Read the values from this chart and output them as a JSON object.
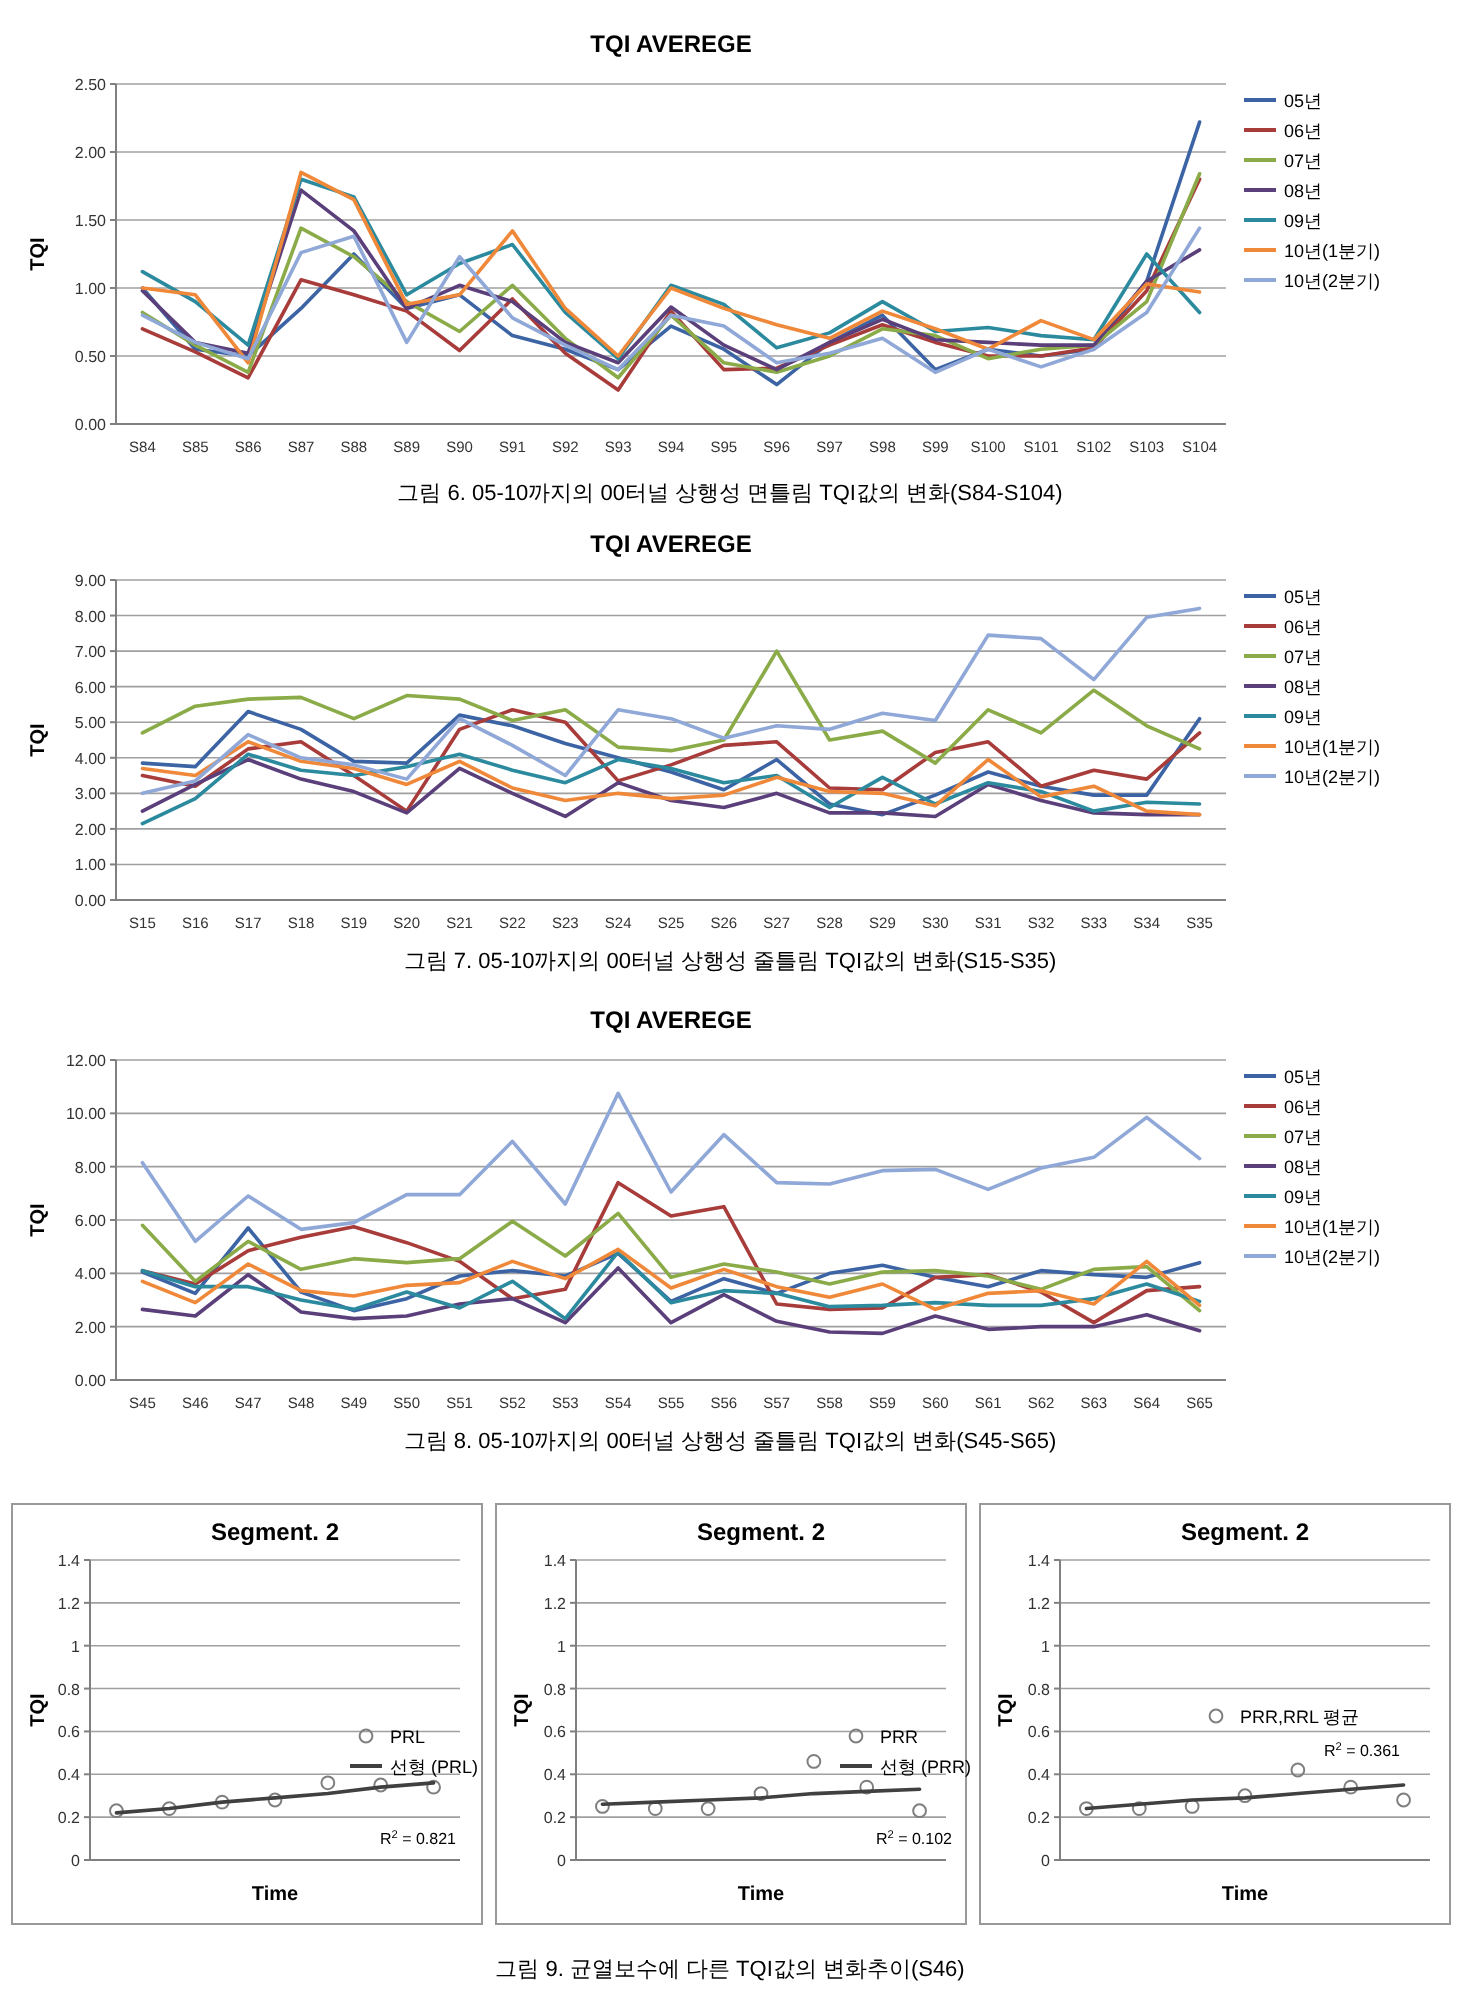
{
  "chart_data": [
    {
      "type": "line",
      "title": "TQI AVEREGE",
      "ylabel": "TQI",
      "grid": "y",
      "legend": "right",
      "categories": [
        "S84",
        "S85",
        "S86",
        "S87",
        "S88",
        "S89",
        "S90",
        "S91",
        "S92",
        "S93",
        "S94",
        "S95",
        "S96",
        "S97",
        "S98",
        "S99",
        "S100",
        "S101",
        "S102",
        "S103",
        "S104"
      ],
      "ylim": [
        0,
        2.5
      ],
      "yticks": [
        {
          "value": 0,
          "label": "0.00"
        },
        {
          "value": 0.5,
          "label": "0.50"
        },
        {
          "value": 1,
          "label": "1.00"
        },
        {
          "value": 1.5,
          "label": "1.50"
        },
        {
          "value": 2,
          "label": "2.00"
        },
        {
          "value": 2.5,
          "label": "2.50"
        }
      ],
      "series": [
        {
          "name": "05년",
          "color": "#3c64a4",
          "values": [
            1.0,
            0.55,
            0.5,
            0.85,
            1.25,
            0.85,
            0.95,
            0.65,
            0.55,
            0.4,
            0.72,
            0.55,
            0.29,
            0.6,
            0.8,
            0.4,
            0.55,
            0.5,
            0.55,
            1.05,
            2.22
          ]
        },
        {
          "name": "06년",
          "color": "#a83c3a",
          "values": [
            0.7,
            0.53,
            0.34,
            1.06,
            0.95,
            0.83,
            0.54,
            0.92,
            0.52,
            0.25,
            0.83,
            0.4,
            0.41,
            0.58,
            0.73,
            0.6,
            0.5,
            0.5,
            0.56,
            0.98,
            1.8
          ]
        },
        {
          "name": "07년",
          "color": "#8aab48",
          "values": [
            0.82,
            0.58,
            0.38,
            1.44,
            1.23,
            0.9,
            0.68,
            1.02,
            0.63,
            0.34,
            0.8,
            0.45,
            0.38,
            0.5,
            0.7,
            0.65,
            0.48,
            0.55,
            0.58,
            0.9,
            1.84
          ]
        },
        {
          "name": "08년",
          "color": "#5a3f7a",
          "values": [
            0.98,
            0.6,
            0.52,
            1.72,
            1.42,
            0.85,
            1.02,
            0.9,
            0.6,
            0.45,
            0.86,
            0.58,
            0.4,
            0.6,
            0.77,
            0.62,
            0.6,
            0.58,
            0.58,
            1.05,
            1.28
          ]
        },
        {
          "name": "09년",
          "color": "#2b8a9e",
          "values": [
            1.12,
            0.9,
            0.58,
            1.8,
            1.67,
            0.95,
            1.18,
            1.32,
            0.82,
            0.48,
            1.02,
            0.88,
            0.56,
            0.67,
            0.9,
            0.68,
            0.71,
            0.65,
            0.62,
            1.25,
            0.82
          ]
        },
        {
          "name": "10년(1분기)",
          "color": "#f0883a",
          "values": [
            1.0,
            0.95,
            0.45,
            1.85,
            1.65,
            0.88,
            0.95,
            1.42,
            0.85,
            0.5,
            1.0,
            0.85,
            0.73,
            0.63,
            0.83,
            0.7,
            0.55,
            0.76,
            0.62,
            1.03,
            0.97
          ]
        },
        {
          "name": "10년(2분기)",
          "color": "#8fa8d8",
          "values": [
            0.8,
            0.6,
            0.48,
            1.26,
            1.38,
            0.6,
            1.23,
            0.78,
            0.58,
            0.4,
            0.8,
            0.72,
            0.45,
            0.52,
            0.63,
            0.38,
            0.55,
            0.42,
            0.55,
            0.82,
            1.44
          ]
        }
      ],
      "annotations": [
        "그림 6. 05-10까지의 00터널 상행성 면틀림 TQI값의 변화(S84-S104)"
      ]
    },
    {
      "type": "line",
      "title": "TQI AVEREGE",
      "ylabel": "TQI",
      "grid": "y",
      "legend": "right",
      "categories": [
        "S15",
        "S16",
        "S17",
        "S18",
        "S19",
        "S20",
        "S21",
        "S22",
        "S23",
        "S24",
        "S25",
        "S26",
        "S27",
        "S28",
        "S29",
        "S30",
        "S31",
        "S32",
        "S33",
        "S34",
        "S35"
      ],
      "ylim": [
        0,
        9
      ],
      "yticks": [
        {
          "value": 0,
          "label": "0.00"
        },
        {
          "value": 1,
          "label": "1.00"
        },
        {
          "value": 2,
          "label": "2.00"
        },
        {
          "value": 3,
          "label": "3.00"
        },
        {
          "value": 4,
          "label": "4.00"
        },
        {
          "value": 5,
          "label": "5.00"
        },
        {
          "value": 6,
          "label": "6.00"
        },
        {
          "value": 7,
          "label": "7.00"
        },
        {
          "value": 8,
          "label": "8.00"
        },
        {
          "value": 9,
          "label": "9.00"
        }
      ],
      "series": [
        {
          "name": "05년",
          "color": "#3c64a4",
          "values": [
            3.85,
            3.75,
            5.3,
            4.8,
            3.9,
            3.85,
            5.2,
            4.9,
            4.4,
            4.0,
            3.6,
            3.1,
            3.95,
            2.7,
            2.4,
            2.95,
            3.6,
            3.2,
            2.95,
            2.95,
            5.1
          ]
        },
        {
          "name": "06년",
          "color": "#a83c3a",
          "values": [
            3.5,
            3.2,
            4.25,
            4.45,
            3.5,
            2.5,
            4.8,
            5.35,
            5.0,
            3.35,
            3.8,
            4.35,
            4.45,
            3.15,
            3.1,
            4.15,
            4.45,
            3.2,
            3.65,
            3.4,
            4.7
          ]
        },
        {
          "name": "07년",
          "color": "#8aab48",
          "values": [
            4.7,
            5.45,
            5.65,
            5.7,
            5.1,
            5.75,
            5.65,
            5.05,
            5.35,
            4.3,
            4.2,
            4.5,
            7.0,
            4.5,
            4.75,
            3.85,
            5.35,
            4.7,
            5.9,
            4.9,
            4.25
          ]
        },
        {
          "name": "08년",
          "color": "#5a3f7a",
          "values": [
            2.5,
            3.25,
            3.95,
            3.4,
            3.05,
            2.45,
            3.7,
            3.0,
            2.35,
            3.3,
            2.8,
            2.6,
            3.0,
            2.45,
            2.45,
            2.35,
            3.25,
            2.8,
            2.45,
            2.4,
            2.4
          ]
        },
        {
          "name": "09년",
          "color": "#2b8a9e",
          "values": [
            2.15,
            2.85,
            4.1,
            3.65,
            3.5,
            3.75,
            4.1,
            3.65,
            3.3,
            3.95,
            3.7,
            3.3,
            3.5,
            2.6,
            3.45,
            2.7,
            3.3,
            3.05,
            2.5,
            2.75,
            2.7
          ]
        },
        {
          "name": "10년(1분기)",
          "color": "#f0883a",
          "values": [
            3.7,
            3.5,
            4.45,
            3.9,
            3.7,
            3.25,
            3.9,
            3.15,
            2.8,
            3.0,
            2.85,
            2.95,
            3.45,
            3.05,
            3.0,
            2.65,
            3.95,
            2.9,
            3.2,
            2.5,
            2.4
          ]
        },
        {
          "name": "10년(2분기)",
          "color": "#8fa8d8",
          "values": [
            3.0,
            3.35,
            4.65,
            4.0,
            3.8,
            3.4,
            5.1,
            4.35,
            3.5,
            5.35,
            5.1,
            4.55,
            4.9,
            4.8,
            5.25,
            5.05,
            7.45,
            7.35,
            6.2,
            7.95,
            8.2
          ]
        }
      ],
      "annotations": [
        "그림 7. 05-10까지의 00터널 상행성 줄틀림 TQI값의 변화(S15-S35)"
      ]
    },
    {
      "type": "line",
      "title": "TQI AVEREGE",
      "ylabel": "TQI",
      "grid": "y",
      "legend": "right",
      "categories": [
        "S45",
        "S46",
        "S47",
        "S48",
        "S49",
        "S50",
        "S51",
        "S52",
        "S53",
        "S54",
        "S55",
        "S56",
        "S57",
        "S58",
        "S59",
        "S60",
        "S61",
        "S62",
        "S63",
        "S64",
        "S65"
      ],
      "ylim": [
        0,
        12
      ],
      "yticks": [
        {
          "value": 0,
          "label": "0.00"
        },
        {
          "value": 2,
          "label": "2.00"
        },
        {
          "value": 4,
          "label": "4.00"
        },
        {
          "value": 6,
          "label": "6.00"
        },
        {
          "value": 8,
          "label": "8.00"
        },
        {
          "value": 10,
          "label": "10.00"
        },
        {
          "value": 12,
          "label": "12.00"
        }
      ],
      "series": [
        {
          "name": "05년",
          "color": "#3c64a4",
          "values": [
            4.05,
            3.25,
            5.7,
            3.3,
            2.6,
            3.05,
            3.9,
            4.1,
            3.9,
            4.75,
            2.95,
            3.8,
            3.25,
            4.0,
            4.3,
            3.85,
            3.5,
            4.1,
            3.95,
            3.85,
            4.4
          ]
        },
        {
          "name": "06년",
          "color": "#a83c3a",
          "values": [
            4.1,
            3.6,
            4.85,
            5.35,
            5.75,
            5.15,
            4.45,
            3.05,
            3.4,
            7.4,
            6.15,
            6.5,
            2.85,
            2.65,
            2.7,
            3.85,
            3.95,
            3.3,
            2.15,
            3.35,
            3.5
          ]
        },
        {
          "name": "07년",
          "color": "#8aab48",
          "values": [
            5.8,
            3.7,
            5.2,
            4.15,
            4.55,
            4.4,
            4.55,
            5.95,
            4.65,
            6.25,
            3.85,
            4.35,
            4.05,
            3.6,
            4.05,
            4.1,
            3.9,
            3.4,
            4.15,
            4.25,
            2.6
          ]
        },
        {
          "name": "08년",
          "color": "#5a3f7a",
          "values": [
            2.65,
            2.4,
            3.95,
            2.55,
            2.3,
            2.4,
            2.85,
            3.05,
            2.15,
            4.2,
            2.15,
            3.2,
            2.2,
            1.8,
            1.75,
            2.4,
            1.9,
            2.0,
            2.0,
            2.45,
            1.85
          ]
        },
        {
          "name": "09년",
          "color": "#2b8a9e",
          "values": [
            4.1,
            3.5,
            3.5,
            3.0,
            2.65,
            3.3,
            2.7,
            3.7,
            2.3,
            4.8,
            2.9,
            3.35,
            3.25,
            2.75,
            2.8,
            2.9,
            2.8,
            2.8,
            3.05,
            3.6,
            2.95
          ]
        },
        {
          "name": "10년(1분기)",
          "color": "#f0883a",
          "values": [
            3.7,
            2.9,
            4.35,
            3.35,
            3.15,
            3.55,
            3.65,
            4.45,
            3.8,
            4.9,
            3.45,
            4.15,
            3.5,
            3.1,
            3.6,
            2.65,
            3.25,
            3.35,
            2.85,
            4.45,
            2.8
          ]
        },
        {
          "name": "10년(2분기)",
          "color": "#8fa8d8",
          "values": [
            8.15,
            5.2,
            6.9,
            5.65,
            5.9,
            6.95,
            6.95,
            8.95,
            6.6,
            10.75,
            7.05,
            9.2,
            7.4,
            7.35,
            7.85,
            7.9,
            7.15,
            7.95,
            8.35,
            9.85,
            8.3
          ]
        }
      ],
      "annotations": [
        "그림 8. 05-10까지의 00터널 상행성 줄틀림 TQI값의 변화(S45-S65)"
      ]
    },
    {
      "type": "scatter",
      "title": "Segment. 2",
      "xlabel": "Time",
      "ylabel": "TQI",
      "grid": "y",
      "legend": "right",
      "categories": [
        null,
        null,
        null,
        null,
        null,
        null,
        null
      ],
      "ylim": [
        0,
        1.4
      ],
      "yticks": [
        0,
        0.2,
        0.4,
        0.6,
        0.8,
        1,
        1.2,
        1.4
      ],
      "series": [
        {
          "name": "PRL",
          "color": "#7f7f7f",
          "marker": "circle",
          "values": [
            0.23,
            0.24,
            0.27,
            0.28,
            0.36,
            0.35,
            0.34
          ]
        },
        {
          "name": "선형 (PRL)",
          "type": "line",
          "marker": "none",
          "color": "#404040",
          "values": [
            0.22,
            0.24,
            0.27,
            0.29,
            0.31,
            0.34,
            0.36
          ]
        }
      ],
      "annotations": [
        "R$^{2}$ = 0.821"
      ]
    },
    {
      "type": "scatter",
      "title": "Segment. 2",
      "xlabel": "Time",
      "ylabel": "TQI",
      "grid": "y",
      "legend": "right",
      "categories": [
        null,
        null,
        null,
        null,
        null,
        null,
        null
      ],
      "ylim": [
        0,
        1.4
      ],
      "yticks": [
        0,
        0.2,
        0.4,
        0.6,
        0.8,
        1,
        1.2,
        1.4
      ],
      "series": [
        {
          "name": "PRR",
          "color": "#7f7f7f",
          "marker": "circle",
          "values": [
            0.25,
            0.24,
            0.24,
            0.31,
            0.46,
            0.34,
            0.23
          ]
        },
        {
          "name": "선형 (PRR)",
          "type": "line",
          "marker": "none",
          "color": "#404040",
          "values": [
            0.26,
            0.27,
            0.28,
            0.29,
            0.31,
            0.32,
            0.33
          ]
        }
      ],
      "annotations": [
        "R$^{2}$ = 0.102",
        "그림 9. 균열보수에 다른 TQI값의 변화추이(S46)"
      ]
    },
    {
      "type": "scatter",
      "title": "Segment. 2",
      "xlabel": "Time",
      "ylabel": "TQI",
      "grid": "y",
      "legend": "right",
      "categories": [
        null,
        null,
        null,
        null,
        null,
        null,
        null
      ],
      "ylim": [
        0,
        1.4
      ],
      "yticks": [
        0,
        0.2,
        0.4,
        0.6,
        0.8,
        1,
        1.2,
        1.4
      ],
      "series": [
        {
          "name": "PRR,RRL 평균",
          "color": "#7f7f7f",
          "marker": "circle",
          "values": [
            0.24,
            0.24,
            0.25,
            0.3,
            0.42,
            0.34,
            0.28
          ]
        },
        {
          "type": "line",
          "marker": "none",
          "color": "#404040",
          "values": [
            0.24,
            0.26,
            0.28,
            0.29,
            0.31,
            0.33,
            0.35
          ]
        }
      ],
      "annotations": [
        "R$^{2}$ = 0.361"
      ]
    }
  ]
}
